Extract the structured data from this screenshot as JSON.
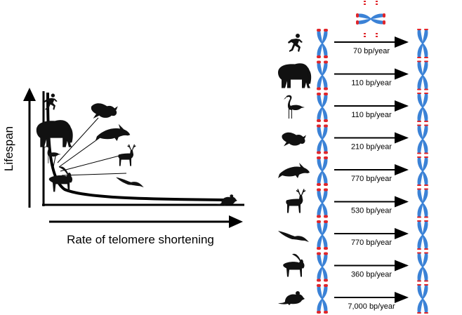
{
  "plot": {
    "y_label": "Lifespan",
    "x_label": "Rate of telomere shortening"
  },
  "colors": {
    "chromosome_blue": "#3b82d6",
    "telomere_red": "#e0262b",
    "silhouette": "#111111"
  },
  "rows": [
    {
      "animal": "human",
      "icon": "runner-icon",
      "rate": "70 bp/year"
    },
    {
      "animal": "elephant",
      "icon": "elephant-icon",
      "rate": "110 bp/year"
    },
    {
      "animal": "flamingo",
      "icon": "flamingo-icon",
      "rate": "110 bp/year"
    },
    {
      "animal": "vulture",
      "icon": "vulture-icon",
      "rate": "210 bp/year"
    },
    {
      "animal": "dolphin",
      "icon": "dolphin-icon",
      "rate": "770 bp/year"
    },
    {
      "animal": "reindeer",
      "icon": "deer-icon",
      "rate": "530 bp/year"
    },
    {
      "animal": "shearwater",
      "icon": "seabird-icon",
      "rate": "770 bp/year"
    },
    {
      "animal": "goat",
      "icon": "goat-icon",
      "rate": "360 bp/year"
    },
    {
      "animal": "mouse",
      "icon": "mouse-icon",
      "rate": "7,000 bp/year"
    }
  ]
}
